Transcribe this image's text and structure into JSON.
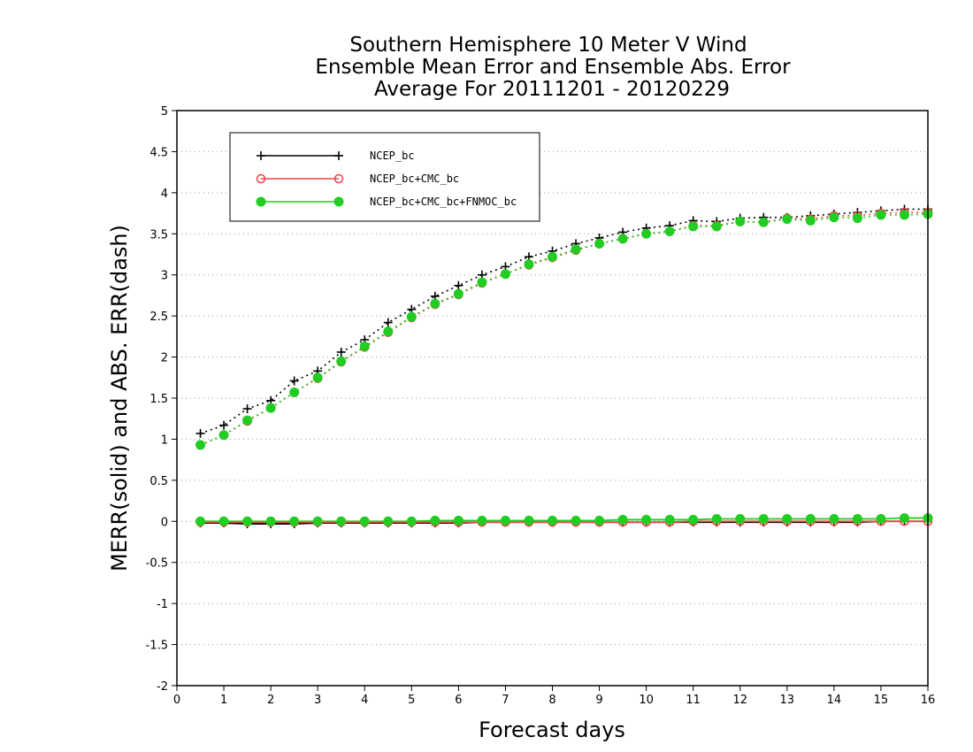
{
  "chart_data": {
    "type": "line",
    "title": [
      "Southern Hemisphere 10 Meter V Wind",
      "Ensemble Mean Error and Ensemble Abs. Error",
      "Average For 20111201 - 20120229"
    ],
    "xlabel": "Forecast days",
    "ylabel": "MERR(solid) and ABS. ERR(dash)",
    "xlim": [
      0,
      16
    ],
    "ylim": [
      -2,
      5
    ],
    "xticks": [
      0,
      1,
      2,
      3,
      4,
      5,
      6,
      7,
      8,
      9,
      10,
      11,
      12,
      13,
      14,
      15,
      16
    ],
    "yticks": [
      -2,
      -1.5,
      -1,
      -0.5,
      0,
      0.5,
      1,
      1.5,
      2,
      2.5,
      3,
      3.5,
      4,
      4.5,
      5
    ],
    "ytick_labels": [
      "-2",
      "-1.5",
      "-1",
      "-0.5",
      "0",
      "0.5",
      "1",
      "1.5",
      "2",
      "2.5",
      "3",
      "3.5",
      "4",
      "4.5",
      "5"
    ],
    "grid": "horizontal-dotted",
    "legend_position": "top-left",
    "x": [
      0.5,
      1,
      1.5,
      2,
      2.5,
      3,
      3.5,
      4,
      4.5,
      5,
      5.5,
      6,
      6.5,
      7,
      7.5,
      8,
      8.5,
      9,
      9.5,
      10,
      10.5,
      11,
      11.5,
      12,
      12.5,
      13,
      13.5,
      14,
      14.5,
      15,
      15.5,
      16
    ],
    "series": [
      {
        "name": "NCEP_bc",
        "color": "#000000",
        "marker": "plus",
        "abs_err": [
          1.07,
          1.17,
          1.37,
          1.47,
          1.71,
          1.83,
          2.06,
          2.21,
          2.42,
          2.58,
          2.74,
          2.87,
          3.0,
          3.1,
          3.22,
          3.29,
          3.38,
          3.45,
          3.52,
          3.57,
          3.6,
          3.66,
          3.65,
          3.69,
          3.7,
          3.7,
          3.72,
          3.74,
          3.76,
          3.78,
          3.8,
          3.8
        ],
        "mean_err": [
          -0.02,
          -0.02,
          -0.03,
          -0.03,
          -0.03,
          -0.02,
          -0.02,
          -0.02,
          -0.02,
          -0.02,
          -0.02,
          -0.02,
          -0.01,
          -0.01,
          -0.01,
          -0.01,
          -0.01,
          -0.01,
          -0.01,
          -0.01,
          -0.01,
          -0.01,
          -0.01,
          -0.01,
          -0.01,
          -0.01,
          -0.01,
          -0.01,
          -0.01,
          0.0,
          0.0,
          0.0
        ]
      },
      {
        "name": "NCEP_bc+CMC_bc",
        "color": "#ee4444",
        "marker": "open-circle",
        "abs_err": [
          0.93,
          1.05,
          1.22,
          1.38,
          1.57,
          1.74,
          1.94,
          2.12,
          2.3,
          2.48,
          2.64,
          2.76,
          2.9,
          3.01,
          3.12,
          3.21,
          3.3,
          3.38,
          3.44,
          3.5,
          3.53,
          3.6,
          3.6,
          3.65,
          3.64,
          3.69,
          3.68,
          3.72,
          3.72,
          3.75,
          3.76,
          3.76
        ],
        "mean_err": [
          -0.01,
          -0.01,
          -0.01,
          -0.01,
          -0.01,
          -0.01,
          -0.01,
          -0.01,
          -0.01,
          -0.01,
          -0.01,
          -0.01,
          -0.01,
          -0.01,
          -0.01,
          -0.01,
          -0.01,
          -0.01,
          -0.01,
          -0.01,
          -0.01,
          0.0,
          0.0,
          0.0,
          0.0,
          0.0,
          0.0,
          0.0,
          0.0,
          0.0,
          0.0,
          0.0
        ]
      },
      {
        "name": "NCEP_bc+CMC_bc+FNMOC_bc",
        "color": "#22cc22",
        "marker": "filled-circle",
        "abs_err": [
          0.93,
          1.05,
          1.23,
          1.38,
          1.57,
          1.75,
          1.95,
          2.13,
          2.31,
          2.49,
          2.65,
          2.77,
          2.91,
          3.01,
          3.13,
          3.22,
          3.31,
          3.38,
          3.44,
          3.5,
          3.53,
          3.59,
          3.59,
          3.65,
          3.64,
          3.68,
          3.66,
          3.7,
          3.69,
          3.73,
          3.73,
          3.74
        ],
        "mean_err": [
          0.0,
          0.0,
          0.0,
          0.0,
          0.0,
          0.0,
          0.0,
          0.0,
          0.0,
          0.0,
          0.01,
          0.01,
          0.01,
          0.01,
          0.01,
          0.01,
          0.01,
          0.01,
          0.02,
          0.02,
          0.02,
          0.02,
          0.03,
          0.03,
          0.03,
          0.03,
          0.03,
          0.03,
          0.03,
          0.03,
          0.04,
          0.04
        ]
      }
    ]
  }
}
